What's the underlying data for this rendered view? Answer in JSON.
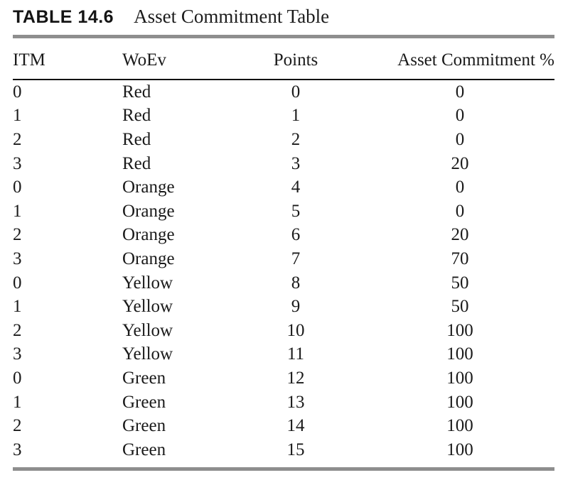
{
  "table": {
    "label": "TABLE 14.6",
    "title": "Asset Commitment Table",
    "columns": [
      "ITM",
      "WoEv",
      "Points",
      "Asset Commitment %"
    ],
    "rows": [
      [
        "0",
        "Red",
        "0",
        "0"
      ],
      [
        "1",
        "Red",
        "1",
        "0"
      ],
      [
        "2",
        "Red",
        "2",
        "0"
      ],
      [
        "3",
        "Red",
        "3",
        "20"
      ],
      [
        "0",
        "Orange",
        "4",
        "0"
      ],
      [
        "1",
        "Orange",
        "5",
        "0"
      ],
      [
        "2",
        "Orange",
        "6",
        "20"
      ],
      [
        "3",
        "Orange",
        "7",
        "70"
      ],
      [
        "0",
        "Yellow",
        "8",
        "50"
      ],
      [
        "1",
        "Yellow",
        "9",
        "50"
      ],
      [
        "2",
        "Yellow",
        "10",
        "100"
      ],
      [
        "3",
        "Yellow",
        "11",
        "100"
      ],
      [
        "0",
        "Green",
        "12",
        "100"
      ],
      [
        "1",
        "Green",
        "13",
        "100"
      ],
      [
        "2",
        "Green",
        "14",
        "100"
      ],
      [
        "3",
        "Green",
        "15",
        "100"
      ]
    ],
    "colors": {
      "text": "#1a1a1a",
      "rule_gray": "#8e8e8e",
      "rule_black": "#111111",
      "background": "#ffffff"
    }
  }
}
